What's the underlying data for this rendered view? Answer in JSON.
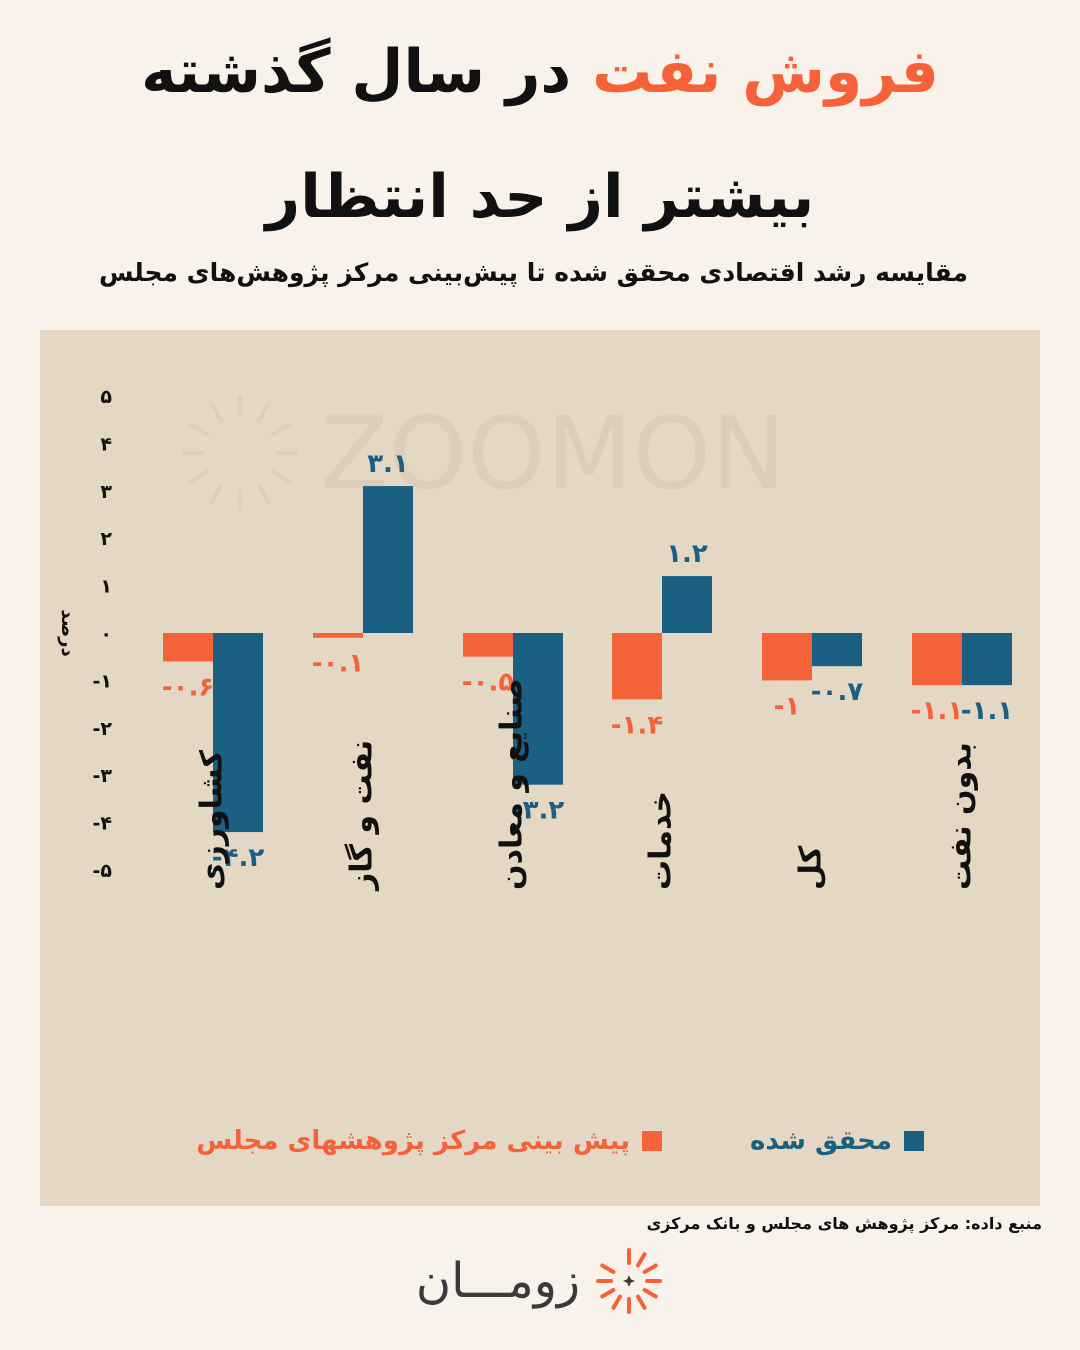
{
  "title": {
    "line1_accent": "فروش نفت",
    "line1_rest": "در سال گذشته",
    "line2": "بیشتر از حد انتظار"
  },
  "subtitle": "مقایسه رشد اقتصادی محقق شده تا پیش‌بینی مرکز پژوهش‌های مجلس",
  "watermark": "ZOOMON",
  "colors": {
    "forecast": "#f4623a",
    "actual": "#1b5f82",
    "panel": "#e4d8c5",
    "background": "#f8f2ea"
  },
  "chart_data": {
    "type": "bar",
    "ylabel": "درصد",
    "ylim": [
      -5,
      5
    ],
    "y_ticks": [
      5,
      4,
      3,
      2,
      1,
      0,
      -1,
      -2,
      -3,
      -4,
      -5
    ],
    "y_tick_labels": [
      "۵",
      "۴",
      "۳",
      "۲",
      "۱",
      "۰",
      "-۱",
      "-۲",
      "-۳",
      "-۴",
      "-۵"
    ],
    "categories": [
      "کشاورزی",
      "نفت و گاز",
      "صنایع و معادن",
      "خدمات",
      "کل",
      "بدون نفت"
    ],
    "series": [
      {
        "name": "پیش بینی مرکز پژوهشهای مجلس",
        "color": "#f4623a",
        "values": [
          -0.6,
          -0.1,
          -0.5,
          -1.4,
          -1,
          -1.1
        ],
        "labels": [
          "-۰.۶",
          "-۰.۱",
          "-۰.۵",
          "-۱.۴",
          "-۱",
          "-۱.۱"
        ]
      },
      {
        "name": "محقق شده",
        "color": "#1b5f82",
        "values": [
          -4.2,
          3.1,
          -3.2,
          1.2,
          -0.7,
          -1.1
        ],
        "labels": [
          "-۴.۲",
          "۳.۱",
          "-۳.۲",
          "۱.۲",
          "-۰.۷",
          "-۱.۱"
        ]
      }
    ]
  },
  "legend": {
    "actual": "محقق شده",
    "forecast": "پیش بینی مرکز پژوهشهای مجلس"
  },
  "source": "منبع داده: مرکز پژوهش های مجلس و بانک مرکزی",
  "brand": {
    "name": "زومـــان",
    "icon": "sunburst-logo-icon"
  }
}
